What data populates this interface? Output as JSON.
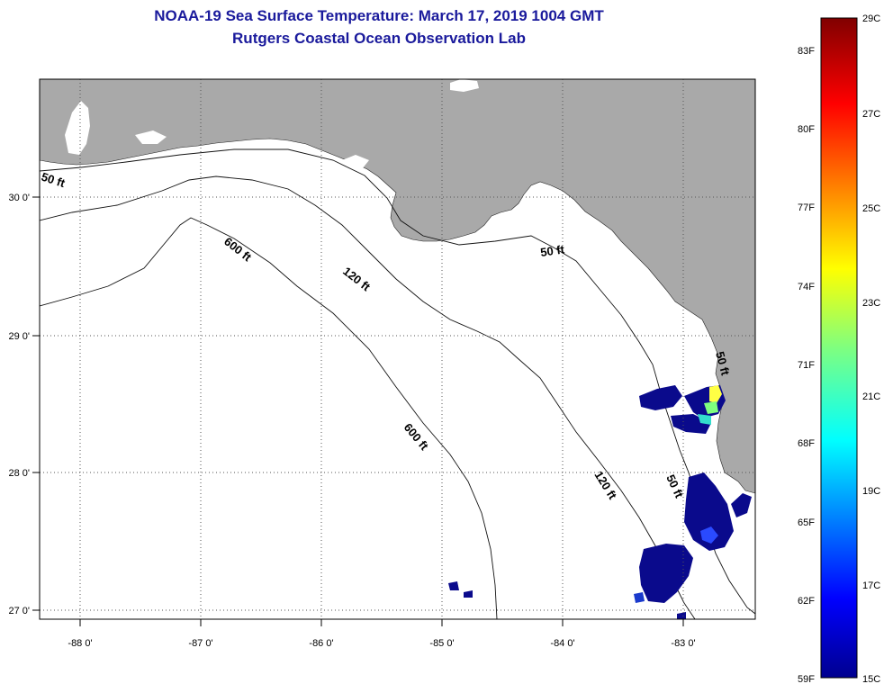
{
  "title": "NOAA-19 Sea Surface Temperature:  March 17, 2019 1004 GMT",
  "subtitle": "Rutgers Coastal Ocean Observation Lab",
  "lon_labels": [
    "-88 0'",
    "-87 0'",
    "-86 0'",
    "-85 0'",
    "-84 0'",
    "-83 0'"
  ],
  "lat_labels": [
    "30 0'",
    "29 0'",
    "28 0'",
    "27 0'"
  ],
  "contours": [
    "50 ft",
    "600 ft",
    "120 ft",
    "50 ft",
    "600 ft",
    "120 ft",
    "50 ft",
    "50 ft"
  ],
  "colorbar": {
    "fahrenheit": [
      "83F",
      "80F",
      "77F",
      "74F",
      "71F",
      "68F",
      "65F",
      "62F",
      "59F"
    ],
    "celsius": [
      "29C",
      "27C",
      "25C",
      "23C",
      "21C",
      "19C",
      "17C",
      "15C"
    ],
    "min_c": 15,
    "max_c": 29
  },
  "colors": {
    "land": "#a9a9a9",
    "title": "#1a1a9c",
    "cold": "#0a0a8c"
  }
}
